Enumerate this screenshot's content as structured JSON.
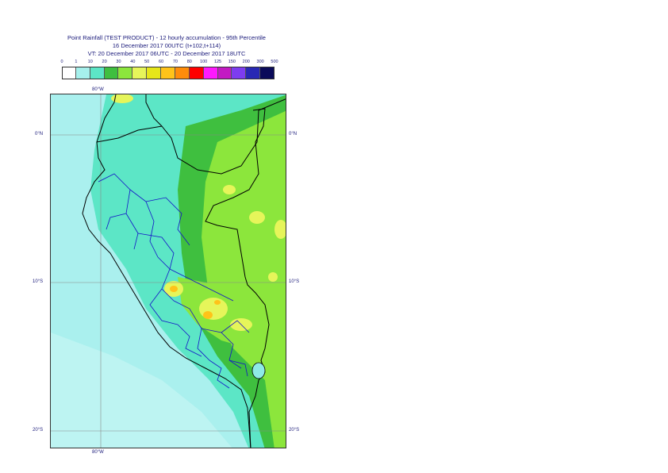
{
  "title": {
    "line1": "Point Rainfall (TEST PRODUCT) - 12 hourly accumulation - 95th Percentile",
    "line2": "16 December 2017 00UTC (t+102,t+114)",
    "line3": "VT: 20 December 2017 06UTC - 20 December 2017 18UTC"
  },
  "legend": {
    "ticks": [
      "0",
      "1",
      "10",
      "20",
      "30",
      "40",
      "50",
      "60",
      "70",
      "80",
      "100",
      "125",
      "150",
      "200",
      "300",
      "500"
    ],
    "colors": [
      "#ffffff",
      "#a6f0ec",
      "#5ce6c6",
      "#3fbf3f",
      "#8ce63c",
      "#e6f55a",
      "#e6e619",
      "#ffc319",
      "#ff8c0a",
      "#ff0000",
      "#ff19ff",
      "#c31ac3",
      "#7d3cf0",
      "#2828b4",
      "#0a0a5a"
    ]
  },
  "axes": {
    "lon_top": "80°W",
    "lon_bottom": "80°W",
    "lat_left": [
      "0°N",
      "10°S",
      "20°S"
    ],
    "lat_right": [
      "0°N",
      "10°S",
      "20°S"
    ]
  },
  "map_colors": {
    "sea_light": "#aaf0ee",
    "sea_mid": "#8eeae6",
    "land_teal": "#5ce6c6",
    "green": "#3fbf3f",
    "lime": "#8ce63c",
    "yellow": "#e6f55a",
    "orange": "#ffc319",
    "border": "#000000",
    "regions": "#1414c8"
  }
}
